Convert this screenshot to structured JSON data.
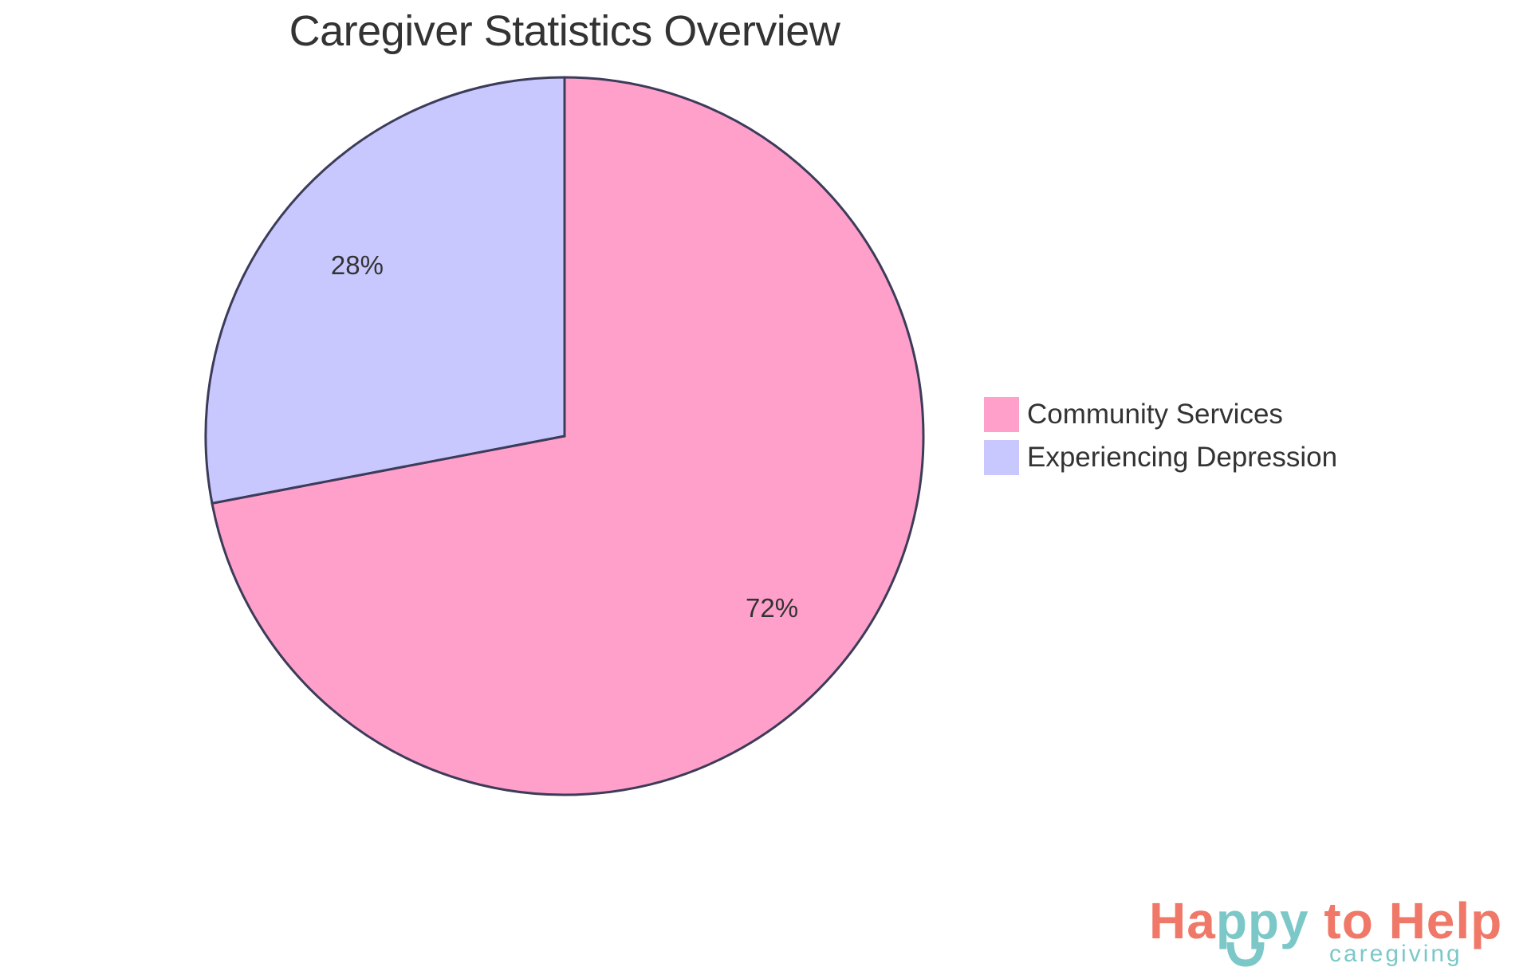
{
  "title": "Caregiver Statistics Overview",
  "chart_data": {
    "type": "pie",
    "title": "Caregiver Statistics Overview",
    "categories": [
      "Community Services",
      "Experiencing Depression"
    ],
    "values": [
      72,
      28
    ],
    "labels": [
      "72%",
      "28%"
    ],
    "colors": [
      "#FFA0CB",
      "#C8C8FF"
    ],
    "stroke_color": "#3C3C5A",
    "legend_position": "right",
    "start_angle": "12 o'clock, clockwise"
  },
  "legend": {
    "items": [
      {
        "label": "Community Services",
        "color": "#FFA0CB"
      },
      {
        "label": "Experiencing Depression",
        "color": "#C8C8FF"
      }
    ]
  },
  "logo": {
    "part1": "Ha",
    "part2": "ppy",
    "part3": " to Help",
    "subtitle": "caregiving",
    "color_primary": "#F07868",
    "color_accent": "#7CC8C8"
  }
}
